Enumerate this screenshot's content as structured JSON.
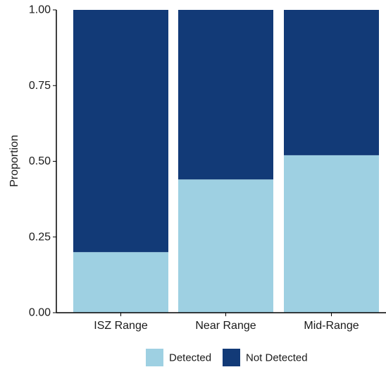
{
  "chart_data": {
    "type": "bar",
    "stacked": true,
    "categories": [
      "ISZ Range",
      "Near Range",
      "Mid-Range"
    ],
    "series": [
      {
        "name": "Detected",
        "values": [
          0.2,
          0.44,
          0.52
        ],
        "color": "#9ed0e2"
      },
      {
        "name": "Not Detected",
        "values": [
          0.8,
          0.56,
          0.48
        ],
        "color": "#123a77"
      }
    ],
    "title": "",
    "xlabel": "",
    "ylabel": "Proportion",
    "ylim": [
      0,
      1
    ],
    "yticks": [
      0,
      0.25,
      0.5,
      0.75,
      1
    ],
    "ytick_labels": [
      "0.00",
      "0.25",
      "0.50",
      "0.75",
      "1.00"
    ],
    "grid": false,
    "legend": "bottom"
  }
}
